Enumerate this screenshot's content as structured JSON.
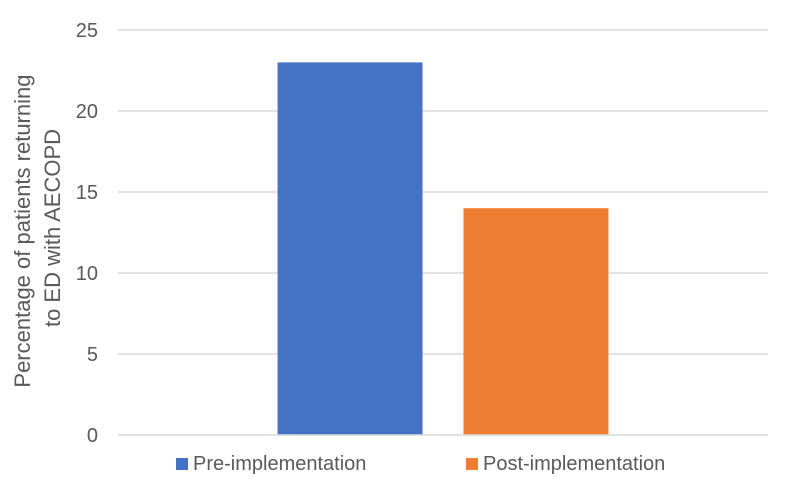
{
  "chart_data": {
    "type": "bar",
    "series": [
      {
        "name": "Pre-implementation",
        "values": [
          23
        ],
        "color": "#4472C4"
      },
      {
        "name": "Post-implementation",
        "values": [
          14
        ],
        "color": "#ED7D31"
      }
    ],
    "xlabel": "",
    "ylabel_lines": [
      "Percentage of patients returning",
      "to ED with AECOPD"
    ],
    "ylim": [
      0,
      25
    ],
    "yticks": [
      0,
      5,
      10,
      15,
      20,
      25
    ],
    "grid": true,
    "legend_position": "bottom"
  }
}
